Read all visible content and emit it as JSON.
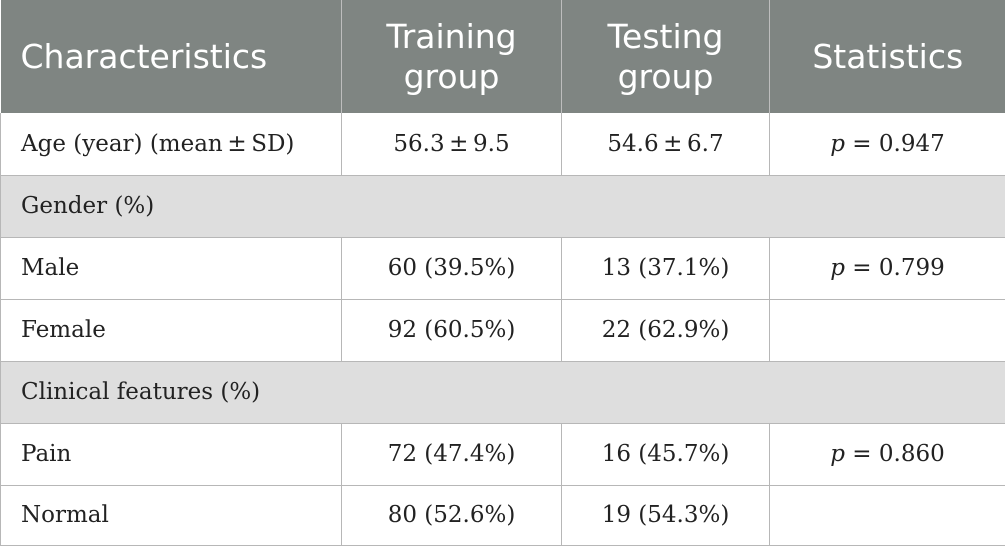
{
  "headers": {
    "characteristics": "Characteristics",
    "training_line1": "Training",
    "training_line2": "group",
    "testing_line1": "Testing",
    "testing_line2": "group",
    "statistics": "Statistics"
  },
  "rows": {
    "age": {
      "label": "Age (year) (mean ± SD)",
      "training": "56.3 ± 9.5",
      "testing": "54.6 ± 6.7",
      "stat_p": "p",
      "stat_value": " = 0.947"
    },
    "gender_section": "Gender (%)",
    "male": {
      "label": "Male",
      "training": "60 (39.5%)",
      "testing": "13 (37.1%)",
      "stat_p": "p",
      "stat_value": " = 0.799"
    },
    "female": {
      "label": "Female",
      "training": "92 (60.5%)",
      "testing": "22 (62.9%)"
    },
    "clinical_section": "Clinical features (%)",
    "pain": {
      "label": "Pain",
      "training": "72 (47.4%)",
      "testing": "16 (45.7%)",
      "stat_p": "p",
      "stat_value": " = 0.860"
    },
    "normal": {
      "label": "Normal",
      "training": "80 (52.6%)",
      "testing": "19 (54.3%)"
    }
  }
}
